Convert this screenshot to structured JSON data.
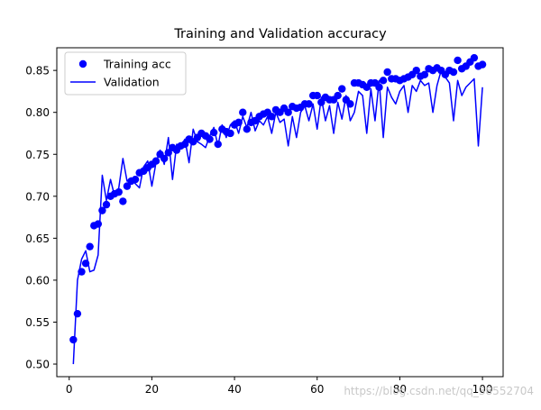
{
  "chart_data": {
    "type": "scatter",
    "title": "Training and Validation accuracy",
    "xlabel": "",
    "ylabel": "",
    "xlim": [
      -3,
      105
    ],
    "ylim": [
      0.485,
      0.877
    ],
    "xticks": [
      0,
      20,
      40,
      60,
      80,
      100
    ],
    "yticks": [
      0.5,
      0.55,
      0.6,
      0.65,
      0.7,
      0.75,
      0.8,
      0.85
    ],
    "xtick_labels": [
      "0",
      "20",
      "40",
      "60",
      "80",
      "100"
    ],
    "ytick_labels": [
      "0.50",
      "0.55",
      "0.60",
      "0.65",
      "0.70",
      "0.75",
      "0.80",
      "0.85"
    ],
    "grid": false,
    "legend_position": "top-left",
    "color": "#0000ff",
    "series": [
      {
        "name": "Training acc",
        "style": "markers",
        "x": [
          1,
          2,
          3,
          4,
          5,
          6,
          7,
          8,
          9,
          10,
          11,
          12,
          13,
          14,
          15,
          16,
          17,
          18,
          19,
          20,
          21,
          22,
          23,
          24,
          25,
          26,
          27,
          28,
          29,
          30,
          31,
          32,
          33,
          34,
          35,
          36,
          37,
          38,
          39,
          40,
          41,
          42,
          43,
          44,
          45,
          46,
          47,
          48,
          49,
          50,
          51,
          52,
          53,
          54,
          55,
          56,
          57,
          58,
          59,
          60,
          61,
          62,
          63,
          64,
          65,
          66,
          67,
          68,
          69,
          70,
          71,
          72,
          73,
          74,
          75,
          76,
          77,
          78,
          79,
          80,
          81,
          82,
          83,
          84,
          85,
          86,
          87,
          88,
          89,
          90,
          91,
          92,
          93,
          94,
          95,
          96,
          97,
          98,
          99,
          100
        ],
        "y": [
          0.529,
          0.56,
          0.61,
          0.62,
          0.64,
          0.665,
          0.667,
          0.683,
          0.69,
          0.7,
          0.703,
          0.705,
          0.694,
          0.712,
          0.718,
          0.72,
          0.728,
          0.73,
          0.734,
          0.738,
          0.742,
          0.75,
          0.745,
          0.752,
          0.758,
          0.755,
          0.76,
          0.762,
          0.768,
          0.765,
          0.77,
          0.775,
          0.772,
          0.768,
          0.776,
          0.762,
          0.78,
          0.777,
          0.775,
          0.785,
          0.788,
          0.8,
          0.78,
          0.788,
          0.79,
          0.795,
          0.798,
          0.8,
          0.795,
          0.803,
          0.8,
          0.805,
          0.8,
          0.807,
          0.805,
          0.806,
          0.81,
          0.81,
          0.82,
          0.82,
          0.812,
          0.818,
          0.815,
          0.815,
          0.82,
          0.828,
          0.815,
          0.81,
          0.835,
          0.835,
          0.833,
          0.83,
          0.835,
          0.835,
          0.83,
          0.838,
          0.848,
          0.84,
          0.84,
          0.838,
          0.84,
          0.842,
          0.845,
          0.85,
          0.843,
          0.845,
          0.852,
          0.85,
          0.853,
          0.85,
          0.845,
          0.85,
          0.848,
          0.862,
          0.852,
          0.855,
          0.86,
          0.865,
          0.855,
          0.857
        ]
      },
      {
        "name": "Validation",
        "style": "line",
        "x": [
          1,
          2,
          3,
          4,
          5,
          6,
          7,
          8,
          9,
          10,
          11,
          12,
          13,
          14,
          15,
          16,
          17,
          18,
          19,
          20,
          21,
          22,
          23,
          24,
          25,
          26,
          27,
          28,
          29,
          30,
          31,
          32,
          33,
          34,
          35,
          36,
          37,
          38,
          39,
          40,
          41,
          42,
          43,
          44,
          45,
          46,
          47,
          48,
          49,
          50,
          51,
          52,
          53,
          54,
          55,
          56,
          57,
          58,
          59,
          60,
          61,
          62,
          63,
          64,
          65,
          66,
          67,
          68,
          69,
          70,
          71,
          72,
          73,
          74,
          75,
          76,
          77,
          78,
          79,
          80,
          81,
          82,
          83,
          84,
          85,
          86,
          87,
          88,
          89,
          90,
          91,
          92,
          93,
          94,
          95,
          96,
          97,
          98,
          99,
          100
        ],
        "y": [
          0.5,
          0.6,
          0.625,
          0.635,
          0.61,
          0.612,
          0.63,
          0.725,
          0.695,
          0.72,
          0.7,
          0.71,
          0.745,
          0.718,
          0.722,
          0.715,
          0.71,
          0.735,
          0.742,
          0.712,
          0.74,
          0.755,
          0.738,
          0.77,
          0.72,
          0.762,
          0.76,
          0.768,
          0.74,
          0.78,
          0.765,
          0.762,
          0.758,
          0.772,
          0.782,
          0.76,
          0.785,
          0.77,
          0.785,
          0.79,
          0.775,
          0.795,
          0.782,
          0.8,
          0.778,
          0.79,
          0.785,
          0.795,
          0.775,
          0.8,
          0.788,
          0.792,
          0.76,
          0.795,
          0.77,
          0.8,
          0.808,
          0.79,
          0.81,
          0.78,
          0.818,
          0.79,
          0.808,
          0.775,
          0.812,
          0.792,
          0.82,
          0.79,
          0.8,
          0.825,
          0.82,
          0.775,
          0.828,
          0.79,
          0.838,
          0.77,
          0.83,
          0.818,
          0.81,
          0.825,
          0.832,
          0.8,
          0.832,
          0.825,
          0.838,
          0.832,
          0.835,
          0.8,
          0.832,
          0.85,
          0.842,
          0.835,
          0.79,
          0.838,
          0.82,
          0.83,
          0.835,
          0.84,
          0.76,
          0.83
        ]
      }
    ]
  },
  "watermark": "https://blog.csdn.net/qq_38552704"
}
